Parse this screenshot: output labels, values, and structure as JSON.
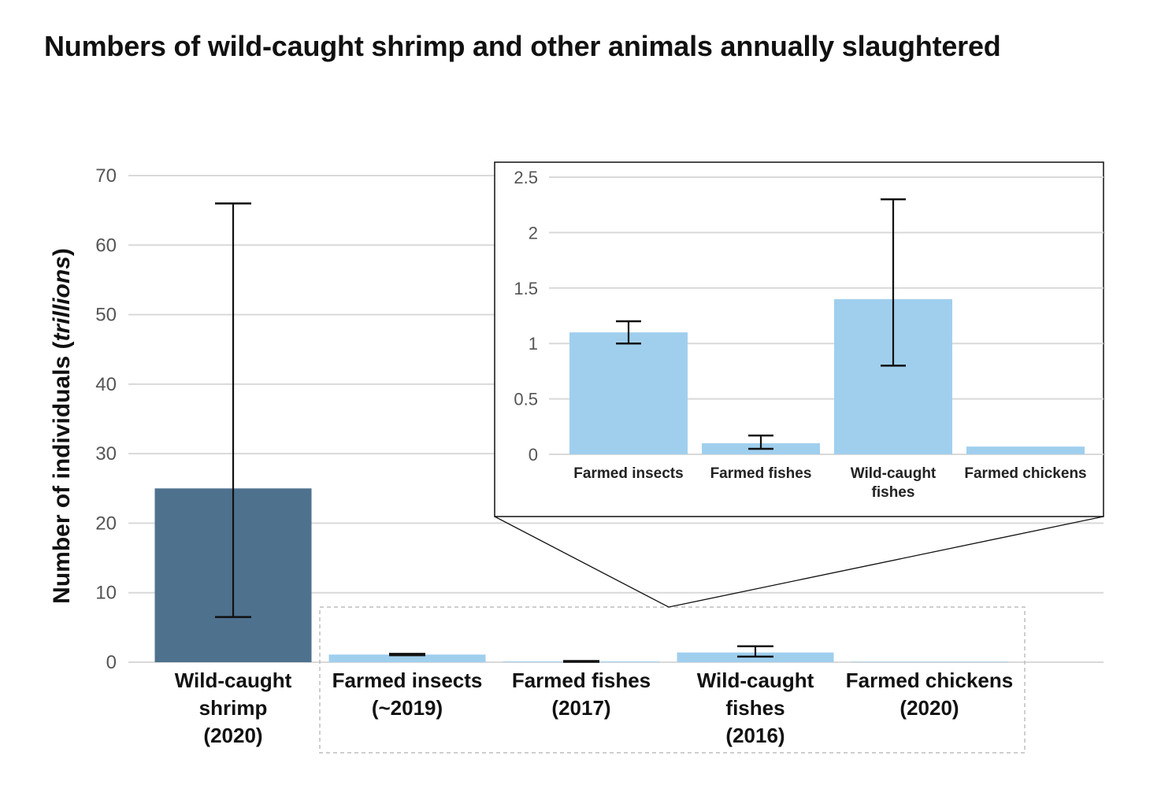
{
  "title": "Numbers of wild-caught shrimp and other animals annually slaughtered",
  "colors": {
    "highlight_bar": "#4e718e",
    "bar": "#a0cfee",
    "grid": "#d9d9d9",
    "error_bar": "#111111"
  },
  "chart_data": [
    {
      "type": "bar",
      "ylabel_prefix": "Number of individuals (",
      "ylabel_unit": "trillions",
      "ylabel_suffix": ")",
      "ylim": [
        0,
        70
      ],
      "yticks": [
        0,
        10,
        20,
        30,
        40,
        50,
        60,
        70
      ],
      "grid": true,
      "categories": [
        [
          "Wild-caught",
          "shrimp",
          "(2020)"
        ],
        [
          "Farmed insects",
          "(~2019)"
        ],
        [
          "Farmed fishes",
          "(2017)"
        ],
        [
          "Wild-caught",
          "fishes",
          "(2016)"
        ],
        [
          "Farmed chickens",
          "(2020)"
        ]
      ],
      "values": [
        25,
        1.1,
        0.1,
        1.4,
        0.07
      ],
      "error_low": [
        6.5,
        1.0,
        0.05,
        0.8,
        null
      ],
      "error_high": [
        66,
        1.2,
        0.17,
        2.3,
        null
      ]
    },
    {
      "type": "bar",
      "inset": true,
      "ylim": [
        0,
        2.5
      ],
      "yticks": [
        "0",
        "0.5",
        "1",
        "1.5",
        "2",
        "2.5"
      ],
      "grid": true,
      "categories": [
        [
          "Farmed insects"
        ],
        [
          "Farmed fishes"
        ],
        [
          "Wild-caught",
          "fishes"
        ],
        [
          "Farmed chickens"
        ]
      ],
      "values": [
        1.1,
        0.1,
        1.4,
        0.07
      ],
      "error_low": [
        1.0,
        0.05,
        0.8,
        null
      ],
      "error_high": [
        1.2,
        0.17,
        2.3,
        null
      ]
    }
  ]
}
